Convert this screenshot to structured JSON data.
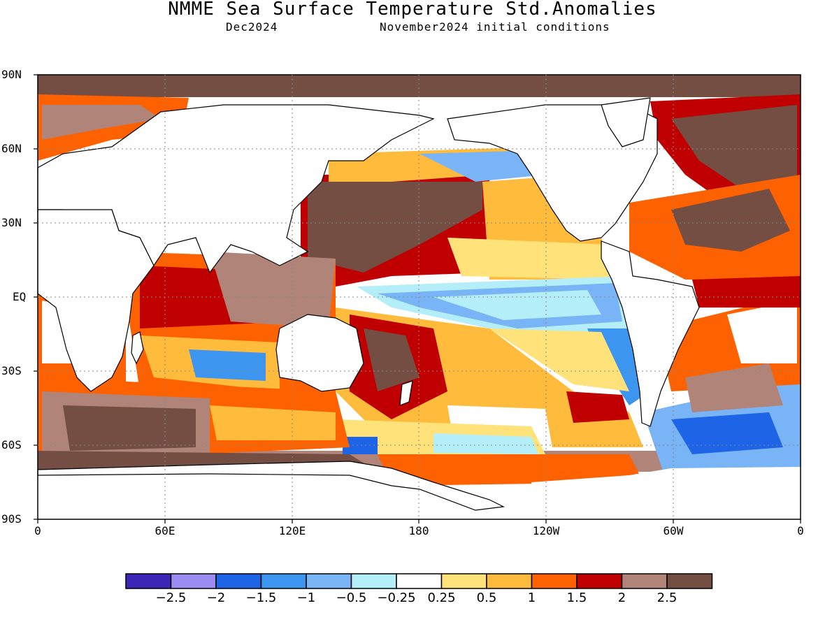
{
  "title": "NMME Sea Surface Temperature Std.Anomalies",
  "subtitle_left": "Dec2024",
  "subtitle_right": "November2024 initial conditions",
  "lat_labels": [
    "90N",
    "60N",
    "30N",
    "EQ",
    "30S",
    "60S",
    "90S"
  ],
  "lon_labels": [
    "0",
    "60E",
    "120E",
    "180",
    "120W",
    "60W",
    "0"
  ],
  "colorbar": {
    "labels": [
      "−2.5",
      "−2",
      "−1.5",
      "−1",
      "−0.5",
      "−0.25",
      "0.25",
      "0.5",
      "1",
      "1.5",
      "2",
      "2.5"
    ],
    "colors": [
      "#3b26b8",
      "#9b8cf2",
      "#1e64e6",
      "#3c96f0",
      "#78b4f6",
      "#b4eef8",
      "#ffffff",
      "#ffe37a",
      "#ffbb3c",
      "#fe6100",
      "#c00000",
      "#b08478",
      "#744d43"
    ]
  },
  "chart_data": {
    "type": "heatmap",
    "title": "NMME Sea Surface Temperature Std.Anomalies",
    "subtitle": "Dec2024 — November2024 initial conditions",
    "x_axis": {
      "ticks": [
        "0",
        "60E",
        "120E",
        "180",
        "120W",
        "60W",
        "0"
      ],
      "range_deg_east": [
        0,
        360
      ]
    },
    "y_axis": {
      "ticks": [
        "90N",
        "60N",
        "30N",
        "EQ",
        "30S",
        "60S",
        "90S"
      ],
      "range_deg": [
        -90,
        90
      ]
    },
    "color_levels": [
      -2.5,
      -2,
      -1.5,
      -1,
      -0.5,
      -0.25,
      0.25,
      0.5,
      1,
      1.5,
      2,
      2.5
    ],
    "grid": true
  }
}
